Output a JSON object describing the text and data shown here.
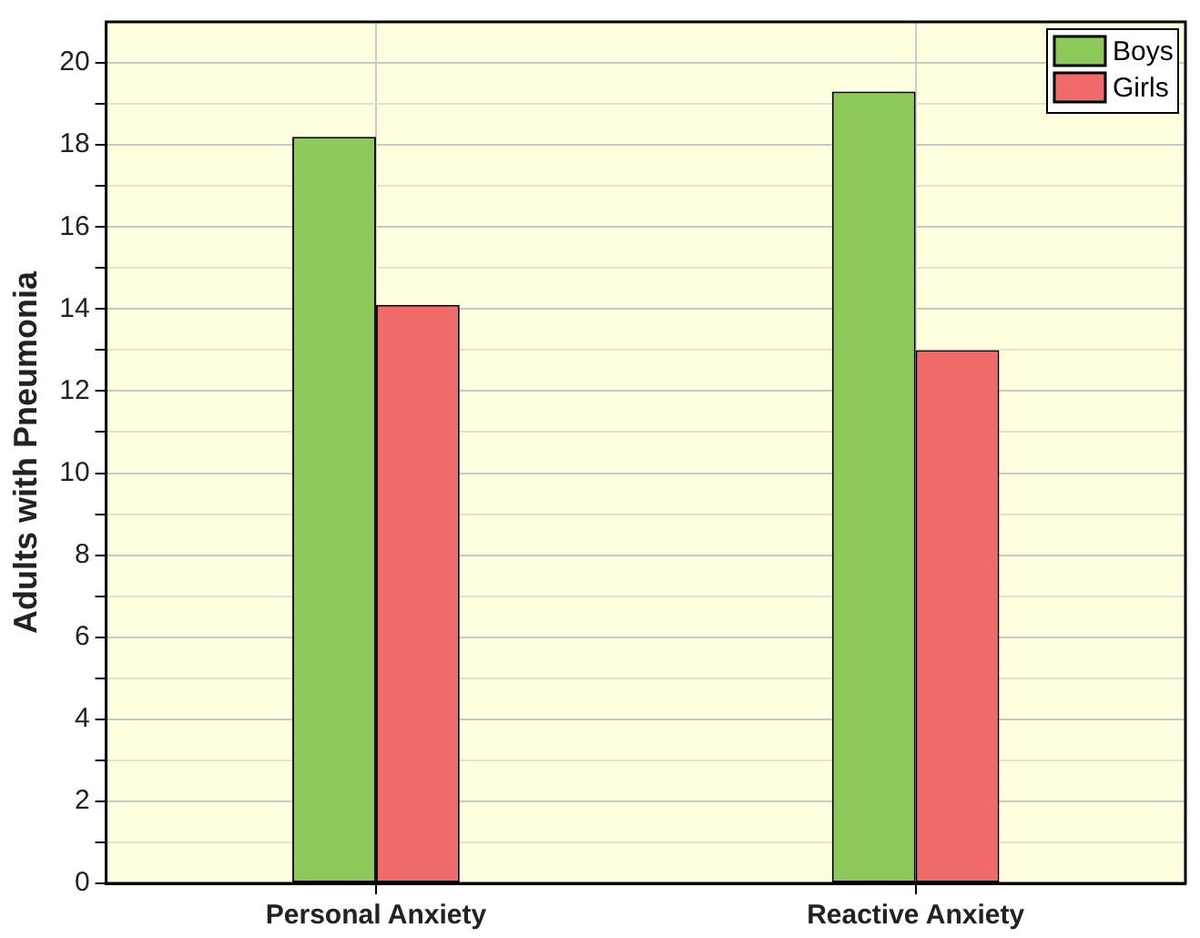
{
  "chart_data": {
    "type": "bar",
    "ylabel": "Adults with Pneumonia",
    "categories": [
      "Personal Anxiety",
      "Reactive Anxiety"
    ],
    "series": [
      {
        "name": "Boys",
        "color": "#8cc85a",
        "values": [
          18.2,
          19.3
        ]
      },
      {
        "name": "Girls",
        "color": "#f06a6a",
        "values": [
          14.1,
          13.0
        ]
      }
    ],
    "ylim": [
      0,
      21
    ],
    "yticks": [
      0,
      {
        "value": 1,
        "label": null
      },
      2,
      {
        "value": 3,
        "label": null
      },
      4,
      {
        "value": 5,
        "label": null
      },
      6,
      {
        "value": 7,
        "label": null
      },
      8,
      {
        "value": 9,
        "label": null
      },
      10,
      {
        "value": 11,
        "label": null
      },
      12,
      {
        "value": 13,
        "label": null
      },
      14,
      {
        "value": 15,
        "label": null
      },
      16,
      {
        "value": 17,
        "label": null
      },
      18,
      {
        "value": 19,
        "label": null
      },
      20
    ],
    "grid": true,
    "legend": "top right"
  }
}
